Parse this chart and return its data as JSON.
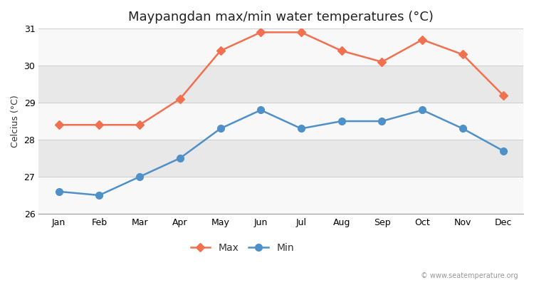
{
  "title": "Maypangdan max/min water temperatures (°C)",
  "ylabel": "Celcius (°C)",
  "months": [
    "Jan",
    "Feb",
    "Mar",
    "Apr",
    "May",
    "Jun",
    "Jul",
    "Aug",
    "Sep",
    "Oct",
    "Nov",
    "Dec"
  ],
  "max_temps": [
    28.4,
    28.4,
    28.4,
    29.1,
    30.4,
    30.9,
    30.9,
    30.4,
    30.1,
    30.7,
    30.3,
    29.2
  ],
  "min_temps": [
    26.6,
    26.5,
    27.0,
    27.5,
    28.3,
    28.8,
    28.3,
    28.5,
    28.5,
    28.8,
    28.3,
    27.7
  ],
  "max_color": "#f07050",
  "min_color": "#5090c8",
  "fig_bg_color": "#ffffff",
  "plot_bg_color": "#f0f0f0",
  "band_light": "#f8f8f8",
  "band_dark": "#e8e8e8",
  "ylim": [
    26,
    31
  ],
  "yticks": [
    26,
    27,
    28,
    29,
    30,
    31
  ],
  "legend_labels": [
    "Max",
    "Min"
  ],
  "watermark": "© www.seatemperature.org",
  "max_marker": "D",
  "min_marker": "o",
  "max_marker_size": 6,
  "min_marker_size": 7,
  "linewidth": 1.8
}
